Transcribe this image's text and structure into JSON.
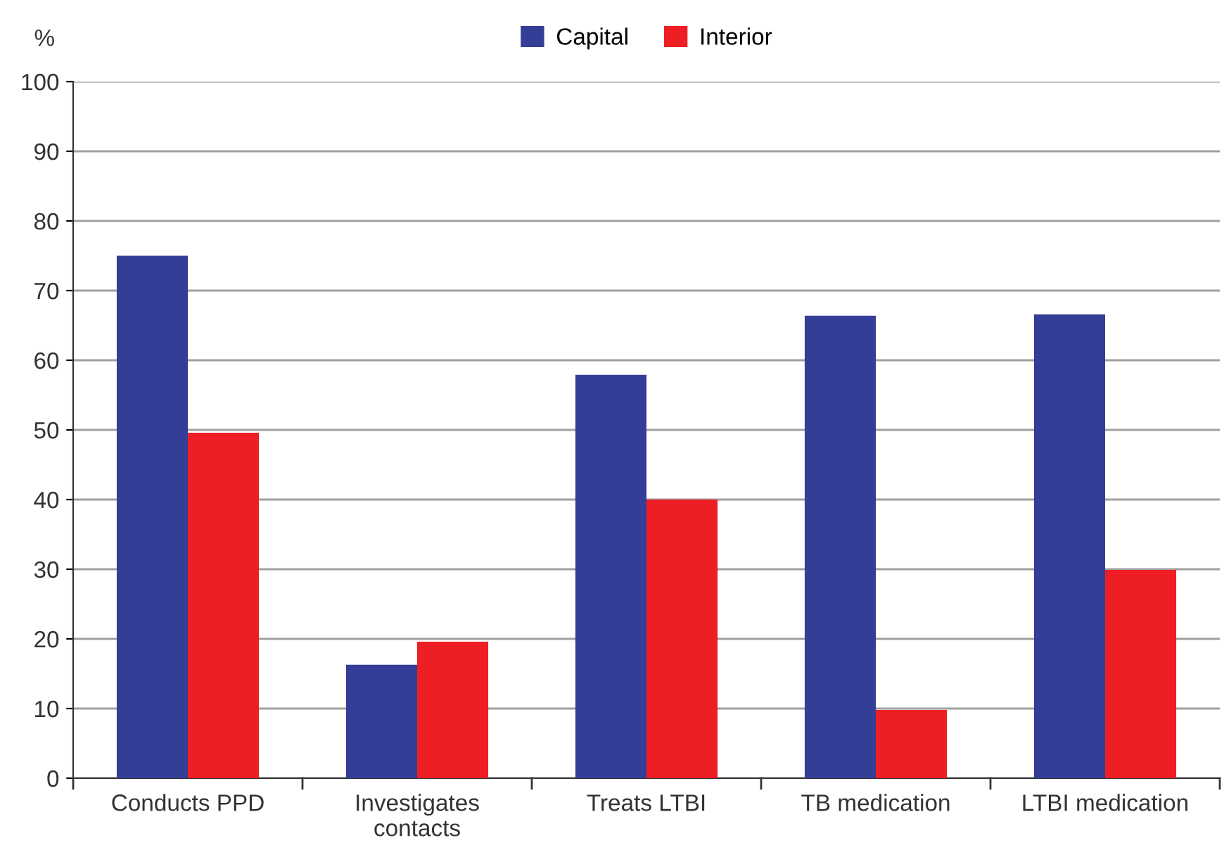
{
  "chart_data": {
    "type": "bar",
    "ylabel": "%",
    "categories": [
      "Conducts PPD",
      "Investigates\ncontacts",
      "Treats LTBI",
      "TB medication",
      "LTBI medication"
    ],
    "series": [
      {
        "name": "Capital",
        "color": "#343e96",
        "values": [
          75,
          16.3,
          57.9,
          66.4,
          66.6
        ]
      },
      {
        "name": "Interior",
        "color": "#ed1f24",
        "values": [
          49.6,
          19.6,
          40,
          9.8,
          29.9
        ]
      }
    ],
    "ylim": [
      0,
      100
    ],
    "yticks": [
      0,
      10,
      20,
      30,
      40,
      50,
      60,
      70,
      80,
      90,
      100
    ],
    "grid": "y",
    "legend": "top"
  }
}
